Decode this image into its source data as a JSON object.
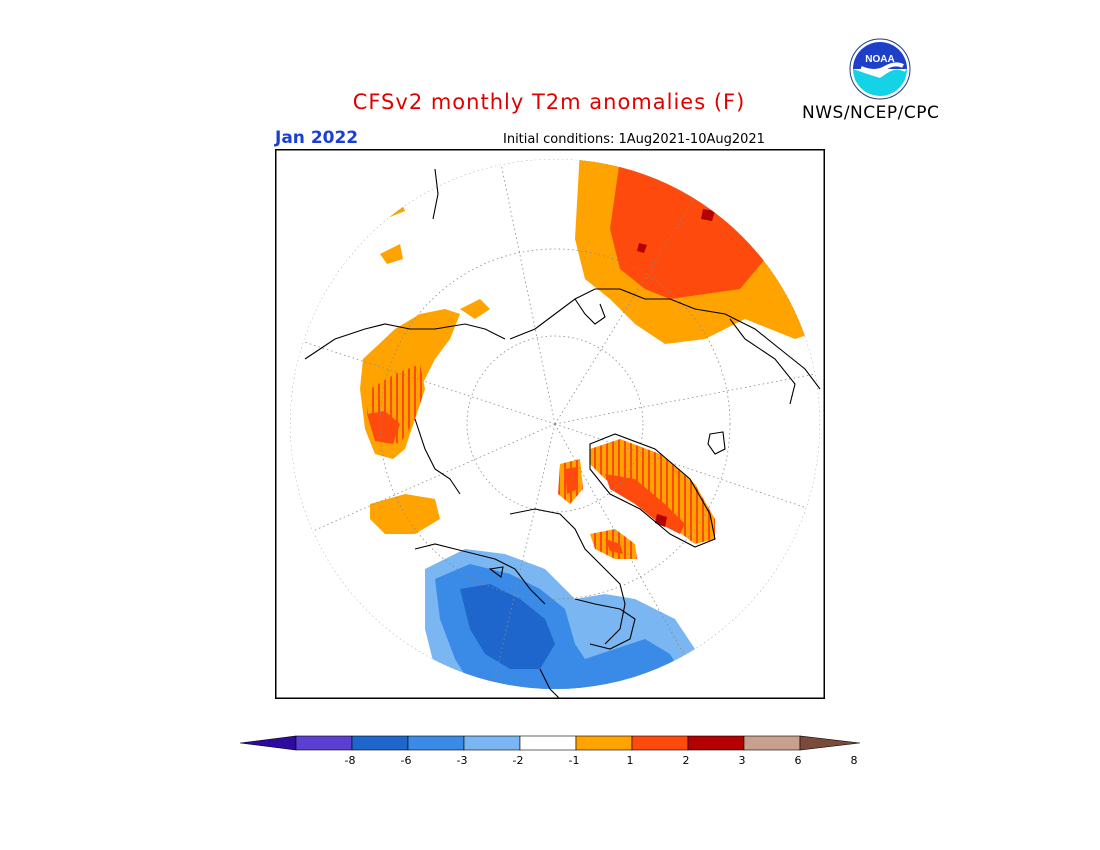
{
  "header": {
    "title": "CFSv2 monthly T2m anomalies (F)",
    "period": "Jan 2022",
    "initial_conditions": "Initial conditions: 1Aug2021-10Aug2021",
    "organization": "NWS/NCEP/CPC",
    "logo_text": "NOAA"
  },
  "colors": {
    "anom_m8_m6": "#5b3fd1",
    "anom_m6_m3": "#1f66cc",
    "anom_m3_m2": "#3a8ae8",
    "anom_m2_m1": "#79b6f2",
    "anom_m1_1": "#ffffff",
    "anom_1_2": "#ffa300",
    "anom_2_3": "#ff4a0d",
    "anom_3_6": "#b30000",
    "anom_6_8": "#c9a08e",
    "over_8": "#7a4a3a",
    "under_m8": "#2c0b9e"
  },
  "colorbar": {
    "tick_labels": [
      "-8",
      "-6",
      "-3",
      "-2",
      "-1",
      "1",
      "2",
      "3",
      "6",
      "8"
    ]
  }
}
